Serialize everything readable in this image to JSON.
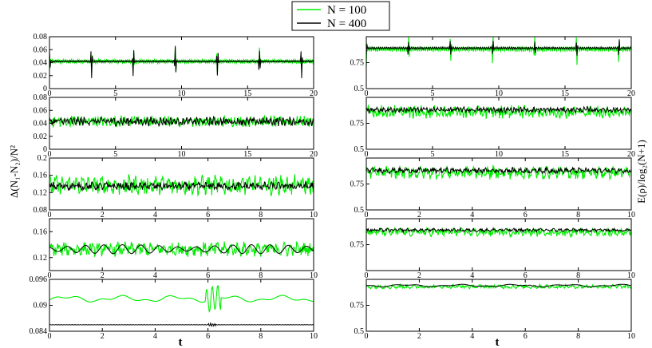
{
  "legend": {
    "placement": "top-center",
    "entries": [
      {
        "label": "N = 100",
        "color": "#00ee00"
      },
      {
        "label": "N = 400",
        "color": "#000000"
      }
    ]
  },
  "left_ylabel": "Δ(N₁-N₂)/N²",
  "right_ylabel": "E(ρ)/log₂(N+1)",
  "left_xlabel": "t",
  "right_xlabel": "t",
  "chart_data": [
    {
      "type": "line",
      "col": "left",
      "row": 0,
      "xlim": [
        0,
        20
      ],
      "ylim": [
        0,
        0.08
      ],
      "xticks": [
        0,
        5,
        10,
        15,
        20
      ],
      "xtick_labels": [
        "0",
        "5",
        "10",
        "15",
        "20"
      ],
      "yticks": [
        0,
        0.02,
        0.04,
        0.06,
        0.08
      ],
      "ytick_labels": [
        "0",
        "0.02",
        "0.04",
        "0.06",
        "0.08"
      ],
      "series": [
        {
          "name": "N = 100",
          "color": "#00ee00",
          "base": 0.042,
          "amp": 0.0035,
          "period": 3.18,
          "spike": 0.024,
          "kind": "periodic"
        },
        {
          "name": "N = 400",
          "color": "#000000",
          "base": 0.042,
          "amp": 0.0015,
          "period": 3.18,
          "spike": 0.028,
          "kind": "periodic"
        }
      ]
    },
    {
      "type": "line",
      "col": "left",
      "row": 1,
      "xlim": [
        0,
        20
      ],
      "ylim": [
        0,
        0.08
      ],
      "xticks": [
        0,
        5,
        10,
        15,
        20
      ],
      "xtick_labels": [
        "0",
        "5",
        "10",
        "15",
        "20"
      ],
      "yticks": [
        0,
        0.02,
        0.04,
        0.06,
        0.08
      ],
      "ytick_labels": [
        "0",
        "0.02",
        "0.04",
        "0.06",
        "0.08"
      ],
      "series": [
        {
          "name": "N = 100",
          "color": "#00ee00",
          "base": 0.043,
          "amp": 0.006,
          "kind": "noisy"
        },
        {
          "name": "N = 400",
          "color": "#000000",
          "base": 0.043,
          "amp": 0.005,
          "kind": "noisy"
        }
      ]
    },
    {
      "type": "line",
      "col": "left",
      "row": 2,
      "xlim": [
        0,
        10
      ],
      "ylim": [
        0.08,
        0.2
      ],
      "xticks": [
        0,
        2,
        4,
        6,
        8,
        10
      ],
      "xtick_labels": [
        "0",
        "2",
        "4",
        "6",
        "8",
        "10"
      ],
      "yticks": [
        0.08,
        0.12,
        0.16,
        0.2
      ],
      "ytick_labels": [
        "0.08",
        "0.12",
        "0.16",
        "0.2"
      ],
      "series": [
        {
          "name": "N = 100",
          "color": "#00ee00",
          "base": 0.137,
          "amp": 0.017,
          "kind": "noisy"
        },
        {
          "name": "N = 400",
          "color": "#000000",
          "base": 0.135,
          "amp": 0.007,
          "kind": "noisy"
        }
      ]
    },
    {
      "type": "line",
      "col": "left",
      "row": 3,
      "xlim": [
        0,
        10
      ],
      "ylim": [
        0.1,
        0.18
      ],
      "xticks": [
        0,
        2,
        4,
        6,
        8,
        10
      ],
      "xtick_labels": [
        "0",
        "2",
        "4",
        "6",
        "8",
        "10"
      ],
      "yticks": [
        0.12,
        0.16
      ],
      "ytick_labels": [
        "0.12",
        "0.16"
      ],
      "series": [
        {
          "name": "N = 100",
          "color": "#00ee00",
          "base": 0.133,
          "amp": 0.008,
          "kind": "noisy"
        },
        {
          "name": "N = 400",
          "color": "#000000",
          "base": 0.133,
          "amp": 0.007,
          "kind": "osc"
        }
      ]
    },
    {
      "type": "line",
      "col": "left",
      "row": 4,
      "xlim": [
        0,
        10
      ],
      "ylim": [
        0.084,
        0.096
      ],
      "xticks": [
        0,
        2,
        4,
        6,
        8,
        10
      ],
      "xtick_labels": [
        "0",
        "2",
        "4",
        "6",
        "8",
        "10"
      ],
      "yticks": [
        0.084,
        0.09,
        0.096
      ],
      "ytick_labels": [
        "0.084",
        "0.09",
        "0.096"
      ],
      "series": [
        {
          "name": "N = 100",
          "color": "#00ee00",
          "base": 0.0915,
          "amp": 0.0005,
          "kind": "smooth"
        },
        {
          "name": "N = 400",
          "color": "#000000",
          "base": 0.0855,
          "amp": 5e-05,
          "kind": "flat"
        }
      ]
    },
    {
      "type": "line",
      "col": "right",
      "row": 0,
      "xlim": [
        0,
        20
      ],
      "ylim": [
        0.5,
        1
      ],
      "xticks": [
        0,
        5,
        10,
        15,
        20
      ],
      "xtick_labels": [
        "0",
        "5",
        "10",
        "15",
        "20"
      ],
      "yticks": [
        0.5,
        0.75
      ],
      "ytick_labels": [
        "0.5",
        "0.75"
      ],
      "series": [
        {
          "name": "N = 100",
          "color": "#00ee00",
          "base": 0.88,
          "amp": 0.025,
          "period": 3.18,
          "spike": -0.2,
          "kind": "periodic"
        },
        {
          "name": "N = 400",
          "color": "#000000",
          "base": 0.89,
          "amp": 0.012,
          "period": 3.18,
          "spike": -0.1,
          "kind": "periodic"
        }
      ]
    },
    {
      "type": "line",
      "col": "right",
      "row": 1,
      "xlim": [
        0,
        20
      ],
      "ylim": [
        0.5,
        1
      ],
      "xticks": [
        0,
        5,
        10,
        15,
        20
      ],
      "xtick_labels": [
        "0",
        "5",
        "10",
        "15",
        "20"
      ],
      "yticks": [
        0.5,
        0.75
      ],
      "ytick_labels": [
        "0.5",
        "0.75"
      ],
      "series": [
        {
          "name": "N = 100",
          "color": "#00ee00",
          "base": 0.86,
          "amp": 0.045,
          "kind": "noisy"
        },
        {
          "name": "N = 400",
          "color": "#000000",
          "base": 0.88,
          "amp": 0.02,
          "kind": "noisy"
        }
      ]
    },
    {
      "type": "line",
      "col": "right",
      "row": 2,
      "xlim": [
        0,
        10
      ],
      "ylim": [
        0.5,
        1
      ],
      "xticks": [
        0,
        2,
        4,
        6,
        8,
        10
      ],
      "xtick_labels": [
        "0",
        "2",
        "4",
        "6",
        "8",
        "10"
      ],
      "yticks": [
        0.5,
        0.75
      ],
      "ytick_labels": [
        "0.5",
        "0.75"
      ],
      "series": [
        {
          "name": "N = 100",
          "color": "#00ee00",
          "base": 0.86,
          "amp": 0.045,
          "kind": "noisy"
        },
        {
          "name": "N = 400",
          "color": "#000000",
          "base": 0.88,
          "amp": 0.02,
          "kind": "noisy"
        }
      ]
    },
    {
      "type": "line",
      "col": "right",
      "row": 3,
      "xlim": [
        0,
        10
      ],
      "ylim": [
        0.5,
        1
      ],
      "xticks": [
        0,
        2,
        4,
        6,
        8,
        10
      ],
      "xtick_labels": [
        "0",
        "2",
        "4",
        "6",
        "8",
        "10"
      ],
      "yticks": [
        0.75
      ],
      "ytick_labels": [
        "0.75"
      ],
      "series": [
        {
          "name": "N = 100",
          "color": "#00ee00",
          "base": 0.87,
          "amp": 0.03,
          "kind": "noisy"
        },
        {
          "name": "N = 400",
          "color": "#000000",
          "base": 0.89,
          "amp": 0.012,
          "kind": "noisy"
        }
      ]
    },
    {
      "type": "line",
      "col": "right",
      "row": 4,
      "xlim": [
        0,
        10
      ],
      "ylim": [
        0.5,
        1
      ],
      "xticks": [
        0,
        2,
        4,
        6,
        8,
        10
      ],
      "xtick_labels": [
        "0",
        "2",
        "4",
        "6",
        "8",
        "10"
      ],
      "yticks": [
        0.5,
        0.75
      ],
      "ytick_labels": [
        "0.5",
        "0.75"
      ],
      "series": [
        {
          "name": "N = 100",
          "color": "#00ee00",
          "base": 0.93,
          "amp": 0.015,
          "kind": "noisy"
        },
        {
          "name": "N = 400",
          "color": "#000000",
          "base": 0.94,
          "amp": 0.008,
          "kind": "smooth"
        }
      ]
    }
  ]
}
